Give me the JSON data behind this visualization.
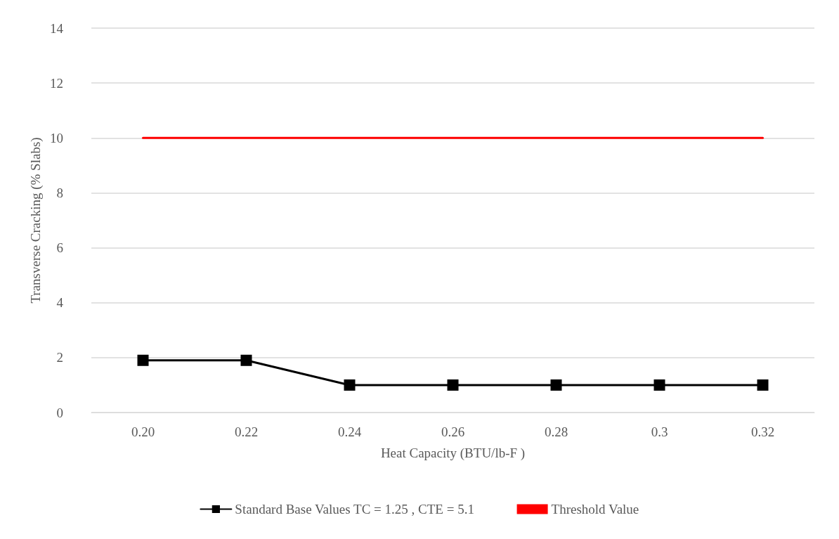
{
  "chart_data": {
    "type": "line",
    "xlabel": "Heat Capacity (BTU/lb-F )",
    "ylabel": "Transverse Cracking (% Slabs)",
    "categories": [
      "0.20",
      "0.22",
      "0.24",
      "0.26",
      "0.28",
      "0.3",
      "0.32"
    ],
    "series": [
      {
        "name": "Standard Base Values TC = 1.25 , CTE = 5.1",
        "color": "#000000",
        "marker": "square",
        "values": [
          1.9,
          1.9,
          1,
          1,
          1,
          1,
          1
        ]
      },
      {
        "name": "Threshold Value",
        "color": "#ff0000",
        "marker": "none",
        "values": [
          10,
          10,
          10,
          10,
          10,
          10,
          10
        ]
      }
    ],
    "ylim": [
      0,
      14
    ],
    "yticks": [
      0,
      2,
      4,
      6,
      8,
      10,
      12,
      14
    ],
    "grid": "y",
    "legend": "bottom",
    "line_style": "solid"
  }
}
